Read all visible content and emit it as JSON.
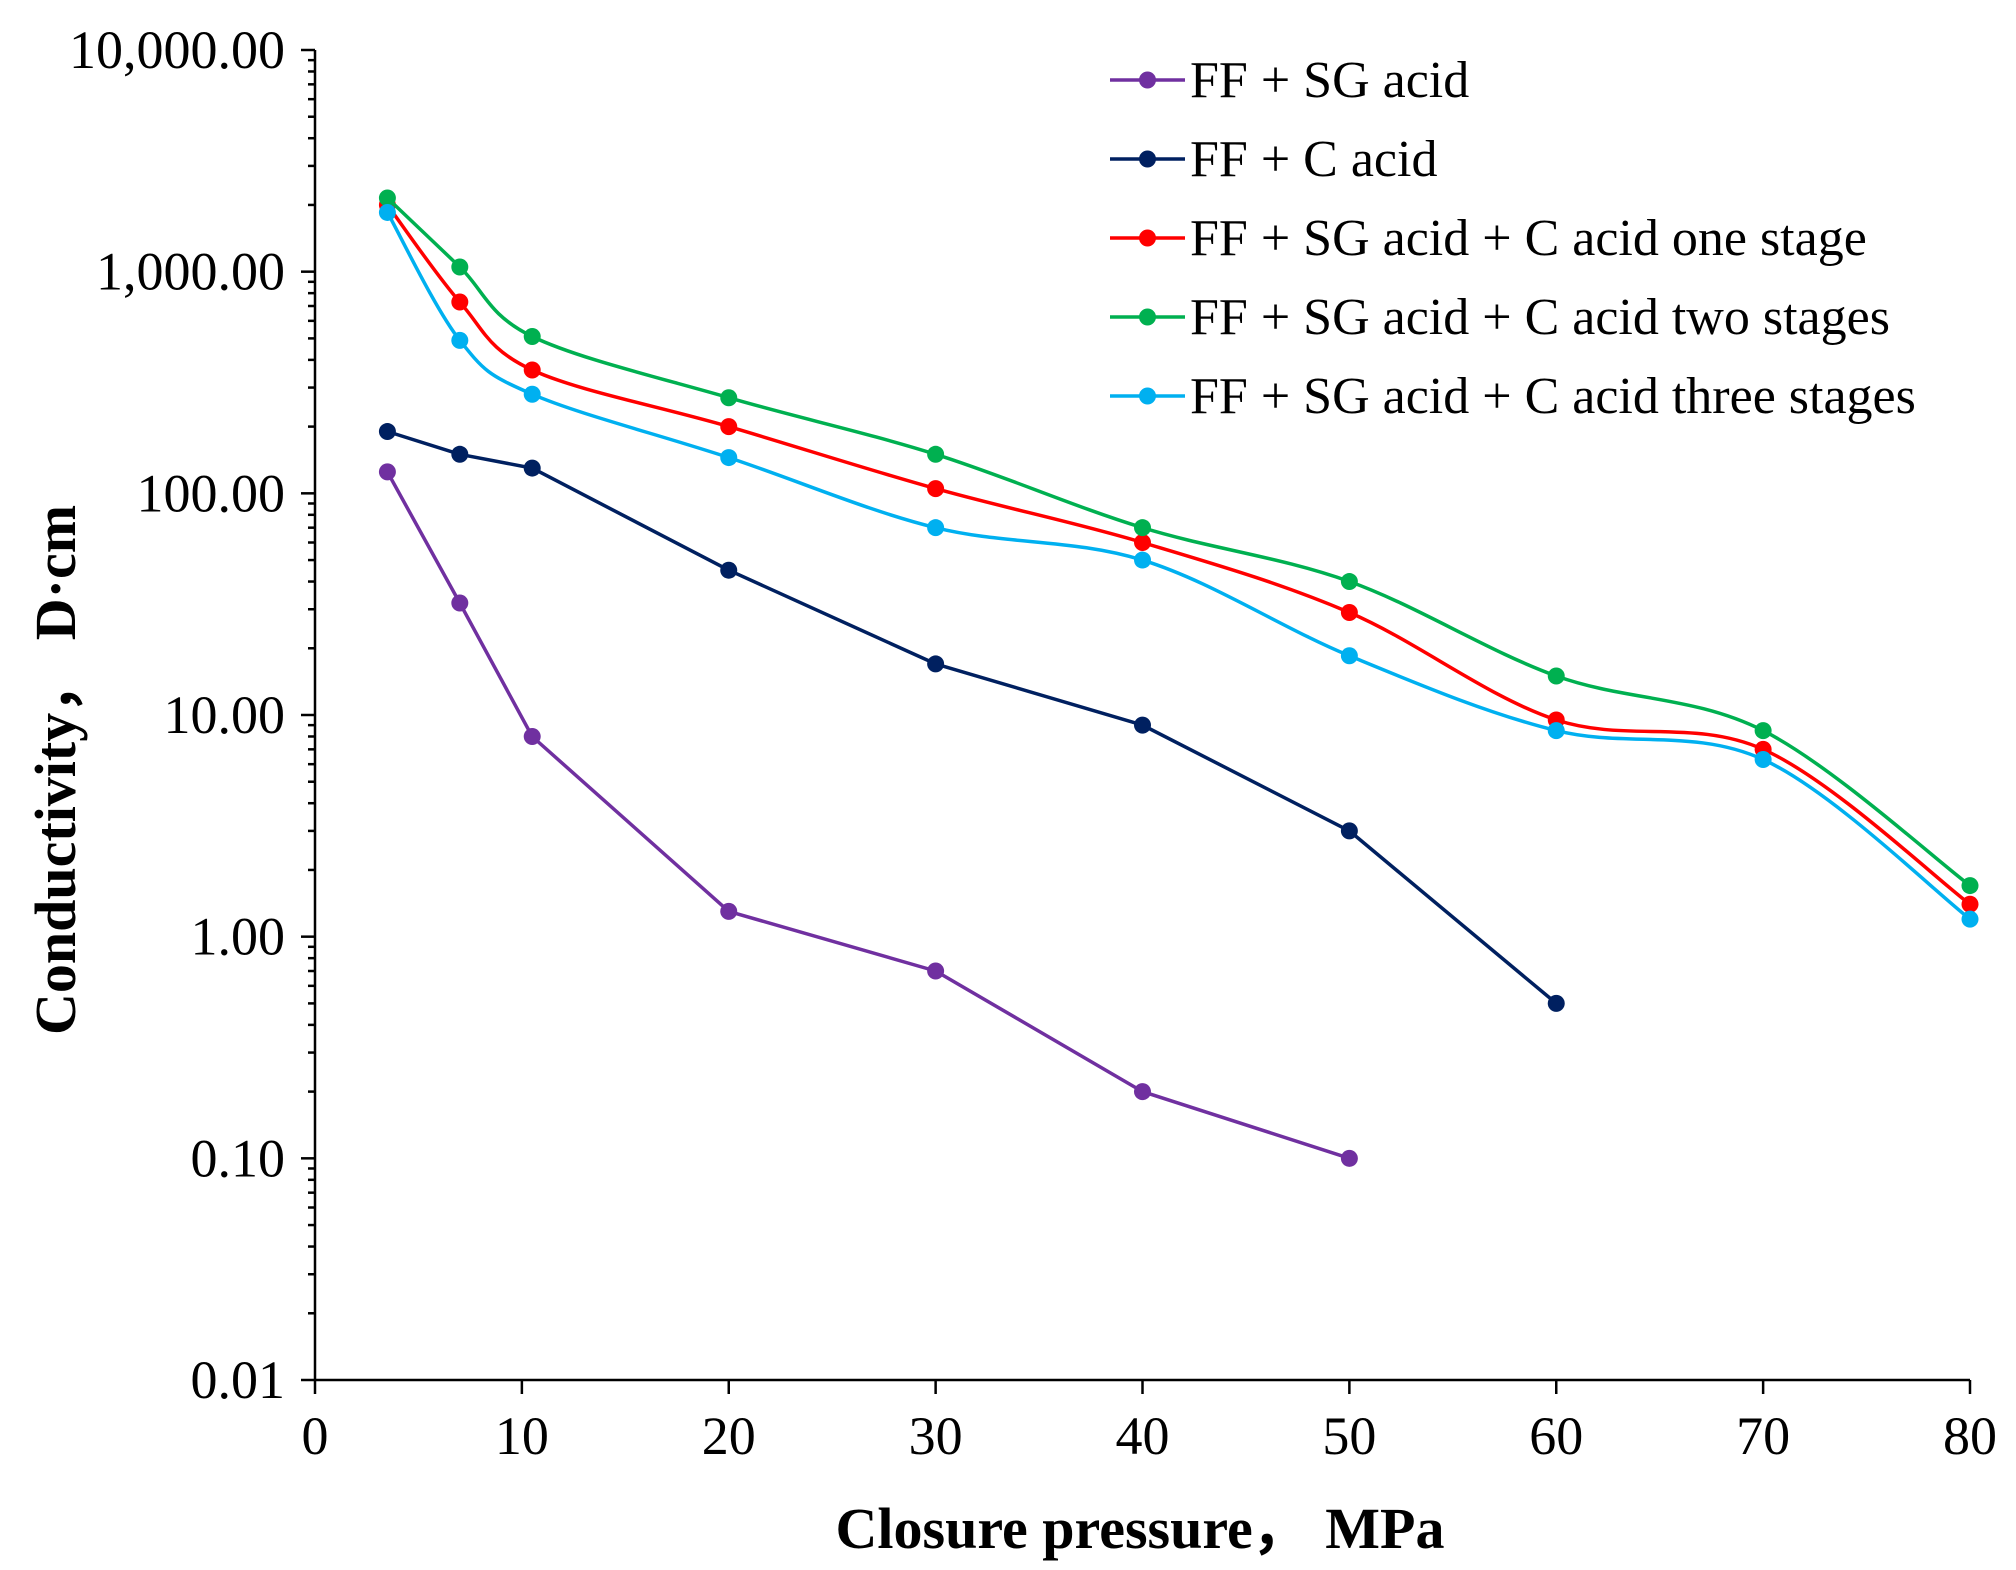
{
  "chart_data": {
    "type": "line",
    "title": "",
    "xlabel": "Closure pressure， MPa",
    "ylabel": "Conductivity， D·cm",
    "xlim": [
      0,
      80
    ],
    "ylim": [
      0.01,
      10000
    ],
    "yscale": "log",
    "x_ticks": [
      "0",
      "10",
      "20",
      "30",
      "40",
      "50",
      "60",
      "70",
      "80"
    ],
    "y_ticks": [
      "0.01",
      "0.10",
      "1.00",
      "10.00",
      "100.00",
      "1,000.00",
      "10,000.00"
    ],
    "grid": false,
    "legend_position": "top-right",
    "series": [
      {
        "name": "FF + SG acid",
        "color": "#7030A0",
        "smooth": false,
        "x": [
          3.5,
          7,
          10.5,
          20,
          30,
          40,
          50
        ],
        "y": [
          125,
          32,
          8,
          1.3,
          0.7,
          0.2,
          0.1
        ]
      },
      {
        "name": "FF + C acid",
        "color": "#002060",
        "smooth": false,
        "x": [
          3.5,
          7,
          10.5,
          20,
          30,
          40,
          50,
          60
        ],
        "y": [
          190,
          150,
          130,
          45,
          17,
          9,
          3,
          0.5
        ]
      },
      {
        "name": "FF + SG acid + C acid one stage",
        "color": "#FF0000",
        "smooth": true,
        "x": [
          3.5,
          7,
          10.5,
          20,
          30,
          40,
          50,
          60,
          70,
          80
        ],
        "y": [
          2000,
          730,
          360,
          200,
          105,
          60,
          29,
          9.5,
          7,
          1.4
        ]
      },
      {
        "name": "FF + SG acid + C acid two stages",
        "color": "#00B050",
        "smooth": true,
        "x": [
          3.5,
          7,
          10.5,
          20,
          30,
          40,
          50,
          60,
          70,
          80
        ],
        "y": [
          2150,
          1050,
          510,
          270,
          150,
          70,
          40,
          15,
          8.5,
          1.7
        ]
      },
      {
        "name": "FF + SG acid + C acid three stages",
        "color": "#00B0F0",
        "smooth": true,
        "x": [
          3.5,
          7,
          10.5,
          20,
          30,
          40,
          50,
          60,
          70,
          80
        ],
        "y": [
          1850,
          490,
          280,
          145,
          70,
          50,
          18.5,
          8.5,
          6.3,
          1.2
        ]
      }
    ]
  }
}
